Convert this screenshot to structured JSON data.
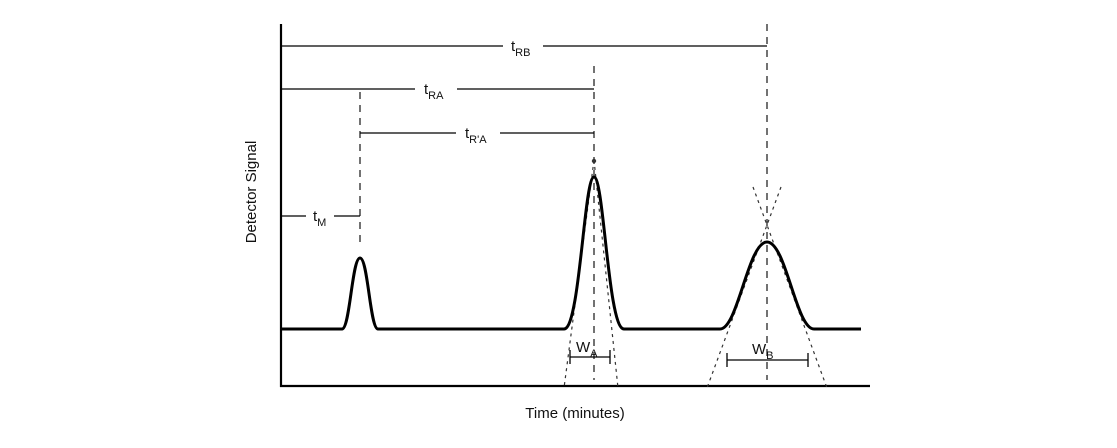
{
  "labels": {
    "t_rb": {
      "main": "t",
      "sub": "RB"
    },
    "t_ra": {
      "main": "t",
      "sub": "RA"
    },
    "t_rpa": {
      "main": "t",
      "sub": "R'A"
    },
    "t_m": {
      "main": "t",
      "sub": "M"
    },
    "w_a": {
      "main": "W",
      "sub": "A"
    },
    "w_b": {
      "main": "W",
      "sub": "B"
    }
  },
  "axes": {
    "x_title": "Time (minutes)",
    "y_title": "Detector Signal"
  }
}
